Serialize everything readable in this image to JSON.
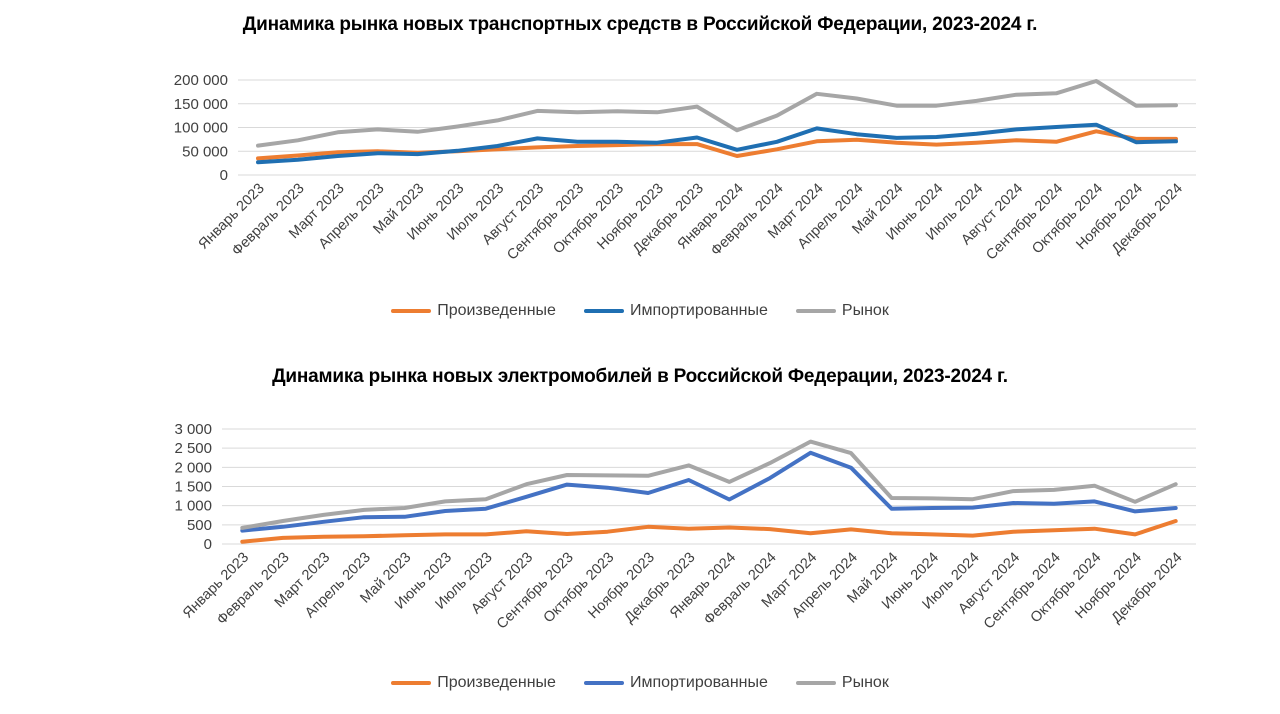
{
  "chart_data": [
    {
      "type": "line",
      "title": "Динамика рынка новых транспортных средств в Российской Федерации, 2023-2024 г.",
      "categories": [
        "Январь 2023",
        "Февраль 2023",
        "Март 2023",
        "Апрель 2023",
        "Май 2023",
        "Июнь 2023",
        "Июль 2023",
        "Август 2023",
        "Сентябрь 2023",
        "Октябрь 2023",
        "Ноябрь 2023",
        "Декабрь 2023",
        "Январь 2024",
        "Февраль 2024",
        "Март 2024",
        "Апрель 2024",
        "Май 2024",
        "Июнь 2024",
        "Июль 2024",
        "Август 2024",
        "Сентябрь 2024",
        "Октябрь 2024",
        "Ноябрь 2024",
        "Декабрь 2024"
      ],
      "ylim": [
        0,
        200000
      ],
      "yticks": [
        0,
        50000,
        100000,
        150000,
        200000
      ],
      "ytick_labels": [
        "0",
        "50 000",
        "100 000",
        "150 000",
        "200 000"
      ],
      "grid": true,
      "legend_position": "bottom",
      "series": [
        {
          "name": "Произведенные",
          "color": "#ED7D31",
          "values": [
            35000,
            41000,
            48000,
            50000,
            47000,
            50000,
            54000,
            58000,
            61000,
            63000,
            65000,
            65000,
            40000,
            54000,
            71000,
            74000,
            68000,
            64000,
            68000,
            73000,
            70000,
            92000,
            76000,
            76000
          ]
        },
        {
          "name": "Импортированные",
          "color": "#1F6FB2",
          "values": [
            27000,
            32000,
            40000,
            46000,
            44000,
            51000,
            61000,
            77000,
            70000,
            70000,
            68000,
            79000,
            53000,
            70000,
            98000,
            86000,
            78000,
            80000,
            87000,
            96000,
            101000,
            106000,
            69000,
            71000
          ]
        },
        {
          "name": "Рынок",
          "color": "#A6A6A6",
          "values": [
            62000,
            73000,
            90000,
            96000,
            91000,
            102000,
            115000,
            135000,
            132000,
            134000,
            132000,
            144000,
            94000,
            125000,
            171000,
            161000,
            146000,
            146000,
            156000,
            169000,
            172000,
            198000,
            146000,
            147000
          ]
        }
      ]
    },
    {
      "type": "line",
      "title": "Динамика рынка новых электромобилей в Российской Федерации, 2023-2024 г.",
      "categories": [
        "Январь 2023",
        "Февраль 2023",
        "Март 2023",
        "Апрель 2023",
        "Май 2023",
        "Июнь 2023",
        "Июль 2023",
        "Август 2023",
        "Сентябрь 2023",
        "Октябрь 2023",
        "Ноябрь 2023",
        "Декабрь 2023",
        "Январь 2024",
        "Февраль 2024",
        "Март 2024",
        "Апрель 2024",
        "Май 2024",
        "Июнь 2024",
        "Июль 2024",
        "Август 2024",
        "Сентябрь 2024",
        "Октябрь 2024",
        "Ноябрь 2024",
        "Декабрь 2024"
      ],
      "ylim": [
        0,
        3000
      ],
      "yticks": [
        0,
        500,
        1000,
        1500,
        2000,
        2500,
        3000
      ],
      "ytick_labels": [
        "0",
        "500",
        "1 000",
        "1 500",
        "2 000",
        "2 500",
        "3 000"
      ],
      "grid": true,
      "legend_position": "bottom",
      "series": [
        {
          "name": "Произведенные",
          "color": "#ED7D31",
          "values": [
            60,
            160,
            190,
            200,
            230,
            250,
            250,
            330,
            260,
            320,
            450,
            400,
            430,
            390,
            280,
            380,
            280,
            250,
            220,
            320,
            360,
            400,
            250,
            600
          ]
        },
        {
          "name": "Импортированные",
          "color": "#4472C4",
          "values": [
            350,
            450,
            580,
            700,
            710,
            860,
            920,
            1230,
            1550,
            1470,
            1330,
            1670,
            1160,
            1720,
            2380,
            1990,
            920,
            940,
            950,
            1070,
            1050,
            1110,
            850,
            940
          ]
        },
        {
          "name": "Рынок",
          "color": "#A6A6A6",
          "values": [
            420,
            600,
            760,
            890,
            940,
            1110,
            1170,
            1560,
            1800,
            1790,
            1780,
            2050,
            1620,
            2110,
            2670,
            2370,
            1200,
            1190,
            1170,
            1380,
            1410,
            1520,
            1100,
            1560
          ]
        }
      ]
    }
  ]
}
